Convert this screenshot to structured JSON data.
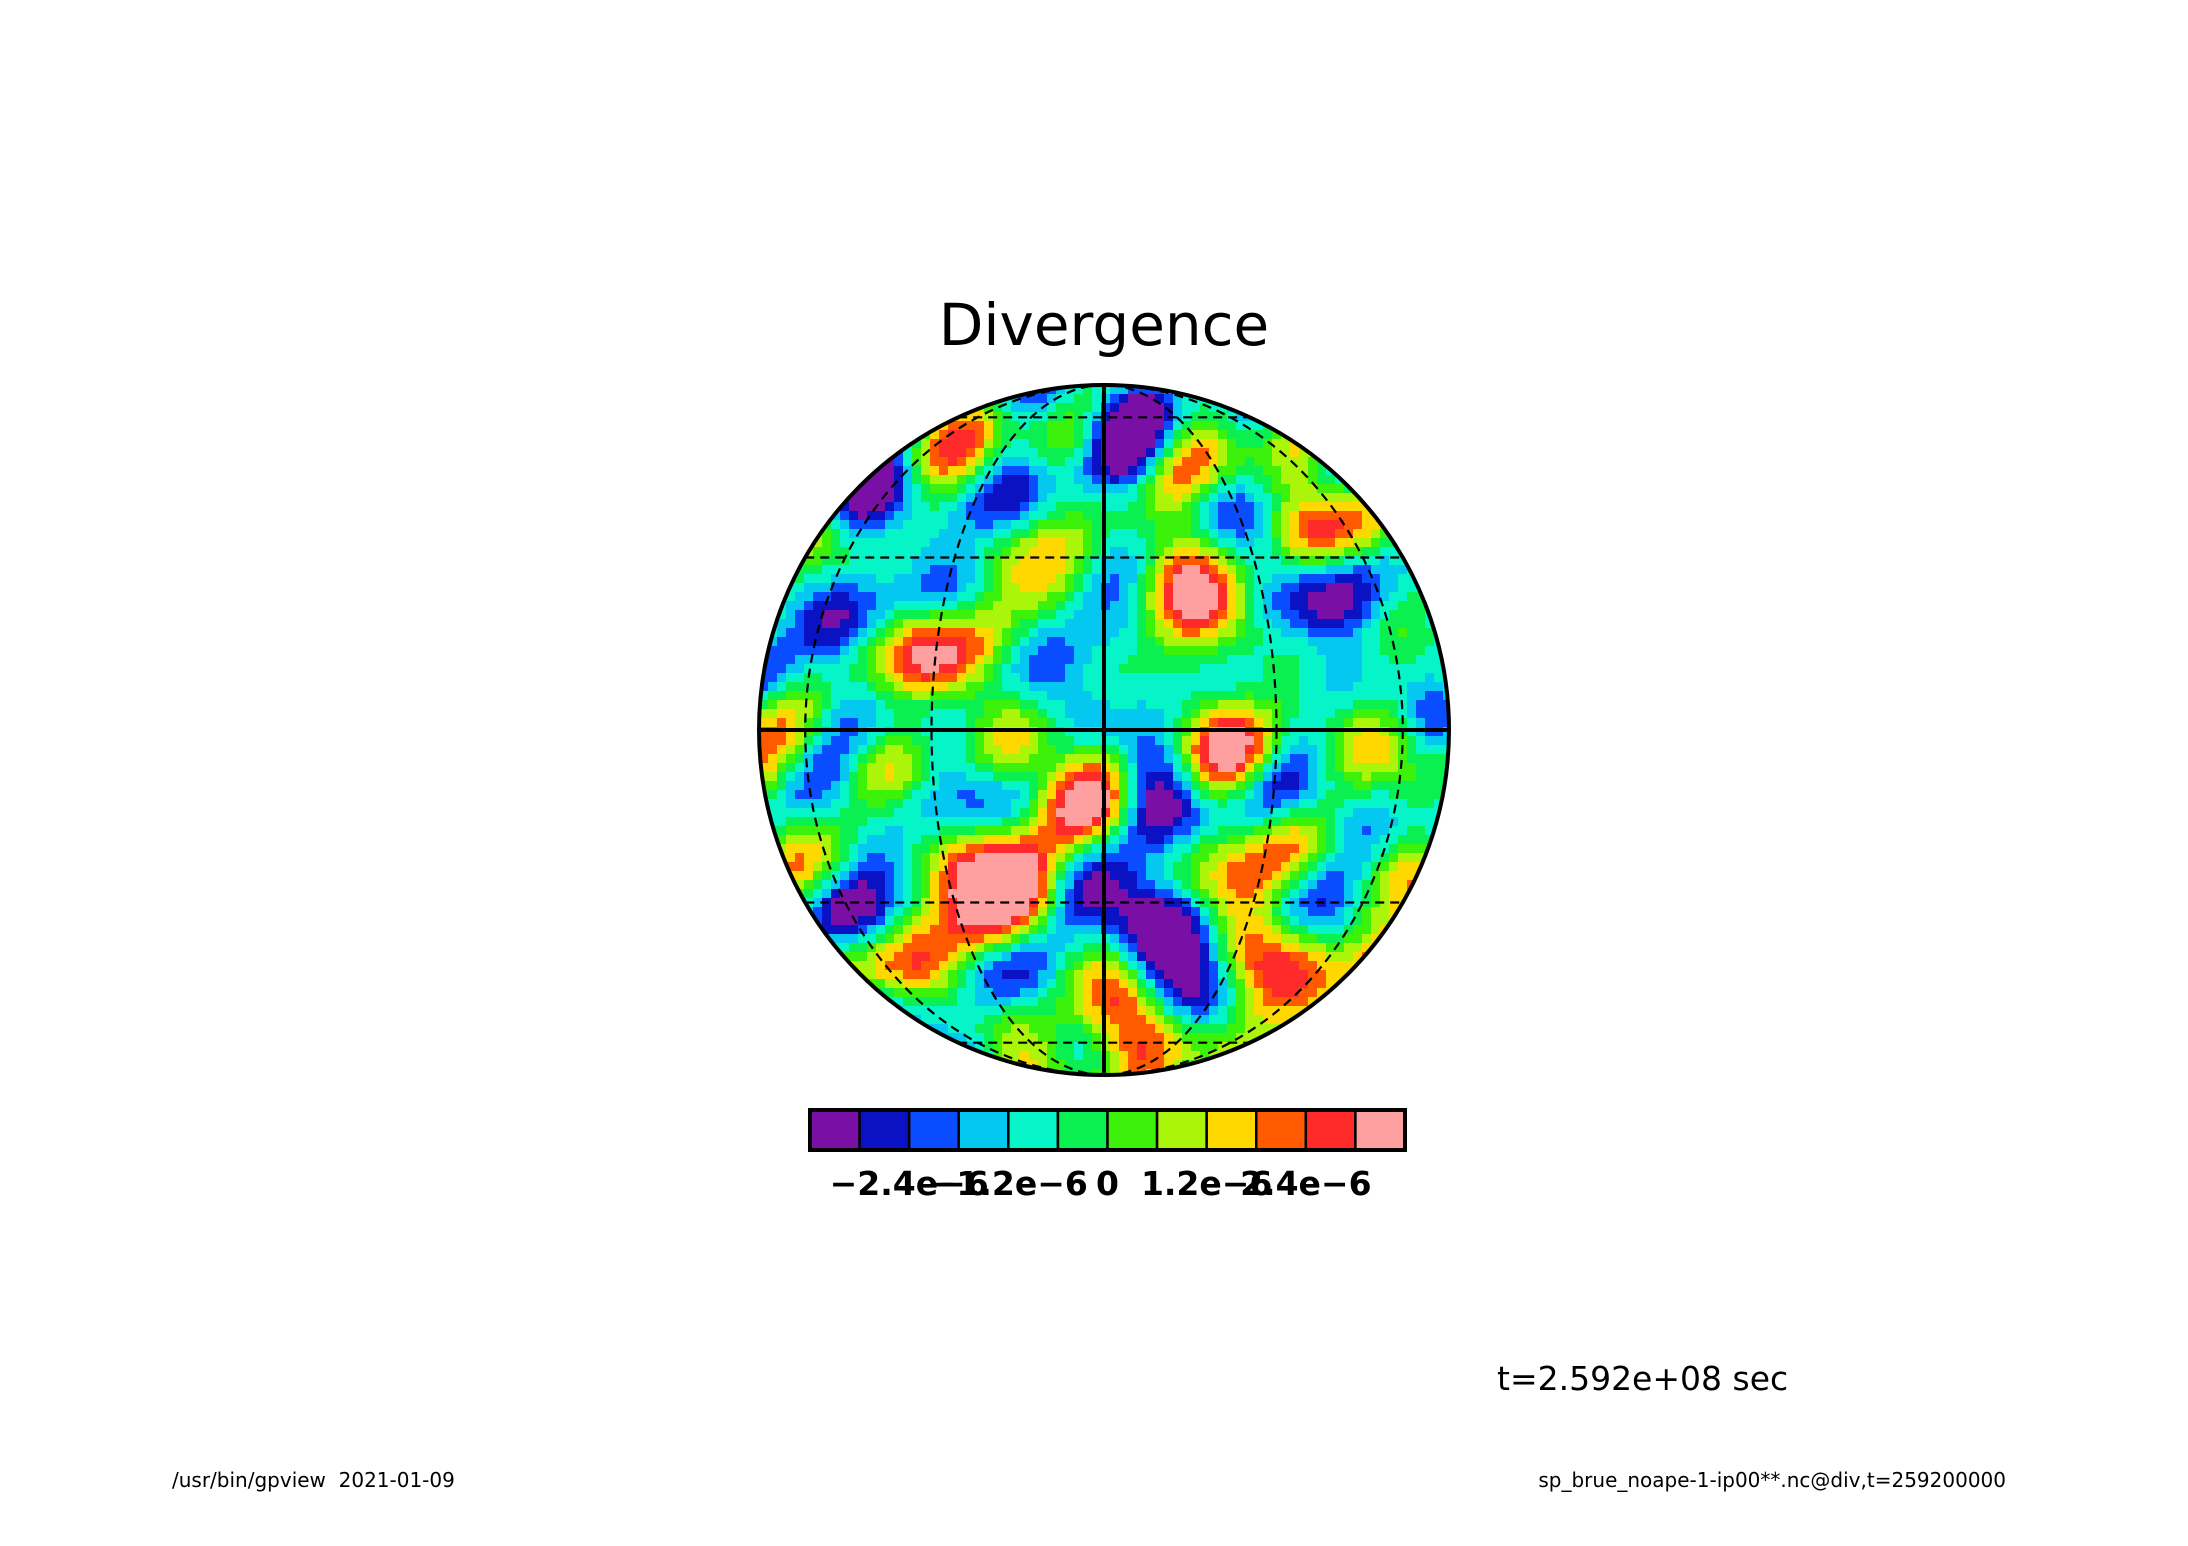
{
  "chart_data": {
    "type": "heatmap",
    "title": "Divergence",
    "projection": "orthographic",
    "grid": true,
    "colorbar": {
      "colors": [
        "#7a0fa6",
        "#0a12c4",
        "#0a4cff",
        "#05c8f0",
        "#05f5c8",
        "#0af050",
        "#3cf20a",
        "#aaf50a",
        "#ffd800",
        "#ff5a00",
        "#ff2a2a",
        "#ffa0a0"
      ],
      "boundaries": [
        -3e-06,
        -2.4e-06,
        -1.8e-06,
        -1.2e-06,
        -6e-07,
        0,
        6e-07,
        1.2e-06,
        1.8e-06,
        2.4e-06,
        3e-06
      ],
      "tick_labels": [
        {
          "value": -2.4e-06,
          "label": "−2.4e−6"
        },
        {
          "value": -1.2e-06,
          "label": "−1.2e−6"
        },
        {
          "value": 0,
          "label": "0"
        },
        {
          "value": 1.2e-06,
          "label": "1.2e−6"
        },
        {
          "value": 2.4e-06,
          "label": "2.4e−6"
        }
      ]
    },
    "time_label": "t=2.592e+08 sec"
  },
  "footer": {
    "left": "/usr/bin/gpview  2021-01-09",
    "right": "sp_brue_noape-1-ip00**.nc@div,t=259200000"
  }
}
